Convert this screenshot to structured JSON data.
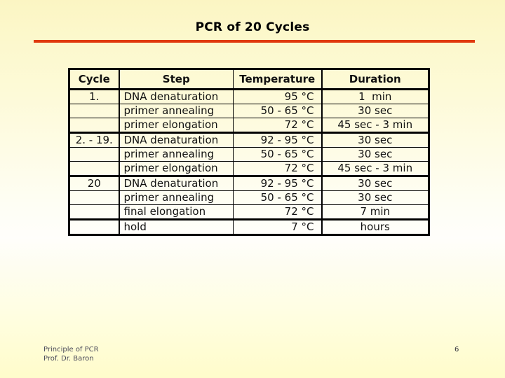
{
  "slide": {
    "title": "PCR of 20 Cycles",
    "page_number": "6",
    "footer": {
      "line1": "Principle of PCR",
      "line2": "Prof. Dr. Baron"
    }
  },
  "colors": {
    "accent_rule": "#e0390e",
    "table_border": "#000000",
    "background_top": "#fbf5c3",
    "background_bottom": "#fffccb",
    "footer_text": "#4b4b5a"
  },
  "table": {
    "headers": [
      "Cycle",
      "Step",
      "Temperature",
      "Duration"
    ],
    "groups": [
      {
        "rows": [
          {
            "cycle": "1.",
            "step": "DNA denaturation",
            "temperature": "95 °C",
            "duration": "1  min"
          },
          {
            "cycle": "",
            "step": "primer annealing",
            "temperature": "50 - 65 °C",
            "duration": "30 sec"
          },
          {
            "cycle": "",
            "step": "primer elongation",
            "temperature": "72 °C",
            "duration": "45 sec - 3 min"
          }
        ]
      },
      {
        "rows": [
          {
            "cycle": "2. - 19.",
            "step": "DNA denaturation",
            "temperature": "92 - 95 °C",
            "duration": "30 sec"
          },
          {
            "cycle": "",
            "step": "primer annealing",
            "temperature": "50 - 65 °C",
            "duration": "30 sec"
          },
          {
            "cycle": "",
            "step": "primer elongation",
            "temperature": "72 °C",
            "duration": "45 sec - 3 min"
          }
        ]
      },
      {
        "rows": [
          {
            "cycle": "20",
            "step": "DNA denaturation",
            "temperature": "92 - 95 °C",
            "duration": "30 sec"
          },
          {
            "cycle": "",
            "step": "primer annealing",
            "temperature": "50 - 65 °C",
            "duration": "30 sec"
          },
          {
            "cycle": "",
            "step": "final elongation",
            "temperature": "72 °C",
            "duration": "7 min"
          }
        ]
      },
      {
        "rows": [
          {
            "cycle": "",
            "step": "hold",
            "temperature": "7 °C",
            "duration": "hours"
          }
        ]
      }
    ]
  }
}
